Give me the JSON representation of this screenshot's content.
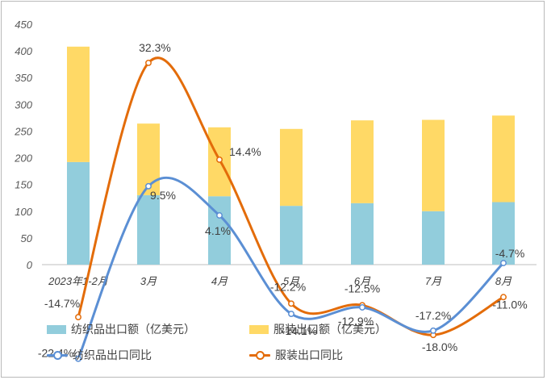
{
  "chart_data": {
    "type": "bar",
    "stacked": true,
    "categories": [
      "2023年1-2月",
      "3月",
      "4月",
      "5月",
      "6月",
      "7月",
      "8月"
    ],
    "ylim": [
      0,
      450
    ],
    "yticks": [
      "0",
      "50",
      "100",
      "150",
      "200",
      "250",
      "300",
      "350",
      "400",
      "450"
    ],
    "grid": false,
    "legend_position": "bottom",
    "series": [
      {
        "name": "纺织品出口额（亿美元）",
        "kind": "bar",
        "color": "#92CDDC",
        "values": [
          192,
          130,
          128,
          110,
          115,
          100,
          117
        ]
      },
      {
        "name": "服装出口额（亿美元）",
        "kind": "bar",
        "color": "#FFD966",
        "values": [
          216,
          134,
          129,
          144,
          155,
          171,
          162
        ]
      },
      {
        "name": "纺织品出口同比",
        "kind": "line",
        "color": "#5B8FD4",
        "values": [
          -22.4,
          9.5,
          4.1,
          -14.1,
          -12.9,
          -17.2,
          -4.7
        ],
        "labels": [
          "-22.4%",
          "9.5%",
          "4.1%",
          "-14.1%",
          "-12.9%",
          "-17.2%",
          "-4.7%"
        ]
      },
      {
        "name": "服装出口同比",
        "kind": "line",
        "color": "#E36C0A",
        "values": [
          -14.7,
          32.3,
          14.4,
          -12.2,
          -12.5,
          -18.0,
          -11.0
        ],
        "labels": [
          "-14.7%",
          "32.3%",
          "14.4%",
          "-12.2%",
          "-12.5%",
          "-18.0%",
          "-11.0%"
        ]
      }
    ]
  }
}
